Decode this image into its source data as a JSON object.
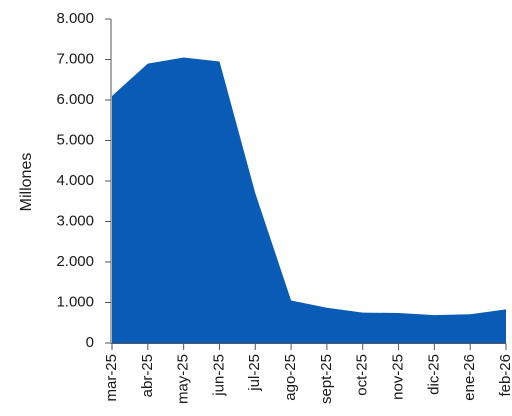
{
  "chart_data": {
    "type": "area",
    "title": "",
    "xlabel": "",
    "ylabel": "Millones",
    "ylim": [
      0,
      8000
    ],
    "yticks": [
      "0",
      "1.000",
      "2.000",
      "3.000",
      "4.000",
      "5.000",
      "6.000",
      "7.000",
      "8.000"
    ],
    "ytick_values": [
      0,
      1000,
      2000,
      3000,
      4000,
      5000,
      6000,
      7000,
      8000
    ],
    "categories": [
      "mar-25",
      "abr-25",
      "may-25",
      "jun-25",
      "jul-25",
      "ago-25",
      "sept-25",
      "oct-25",
      "nov-25",
      "dic-25",
      "ene-26",
      "feb-26"
    ],
    "values": [
      6100,
      6900,
      7050,
      6950,
      3700,
      1050,
      870,
      750,
      740,
      690,
      710,
      830
    ],
    "grid": false,
    "legend": "none",
    "colors": {
      "area": "#0a5bb5",
      "axis": "#555555"
    }
  }
}
